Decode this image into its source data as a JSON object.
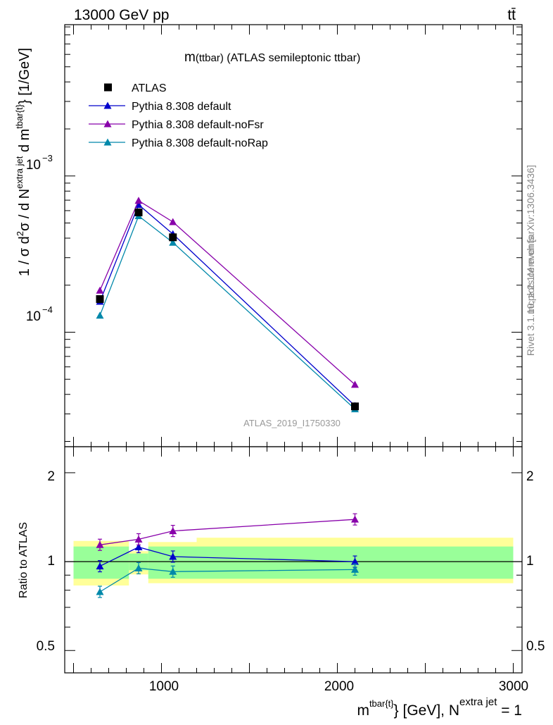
{
  "header": {
    "energy_label": "13000 GeV pp",
    "process_label": "tt̄"
  },
  "side_labels": {
    "rivet": "Rivet 3.1.10, ≥ 2.1M events",
    "mcplots": "mcplots.cern.ch [arXiv:1306.3436]"
  },
  "colors": {
    "atlas": "#000000",
    "default": "#0000cc",
    "noFsr": "#8800aa",
    "noRap": "#0088aa",
    "band_inner": "#99ff99",
    "band_outer": "#ffff99"
  },
  "chart_data": [
    {
      "type": "scatter",
      "title_main": "m",
      "title_sub": "(ttbar)",
      "title_rest": " (ATLAS semileptonic ttbar)",
      "watermark": "ATLAS_2019_I1750330",
      "ylabel": "1 / σ d²σ / d N^{extra jet} d m^{tbar{t}} [1/GeV]",
      "ylabel_parts": {
        "pre1": "1 / σ d",
        "sup1": "2",
        "pre2": "σ / d N",
        "sup2": "extra jet",
        "pre3": " d m",
        "sup3": "tbar{t}",
        "post": "} [1/GeV]"
      },
      "yscale": "log",
      "ylim": [
        1.85e-05,
        0.0093
      ],
      "xlim": [
        450,
        3050
      ],
      "y_ticks": [
        {
          "value": 0.001,
          "base": "10",
          "exp": "−3"
        },
        {
          "value": 0.0001,
          "base": "10",
          "exp": "−4"
        }
      ],
      "legend": {
        "placement": "top-left",
        "entries": [
          {
            "key": "atlas",
            "label": "ATLAS",
            "marker": "square"
          },
          {
            "key": "default",
            "label": "Pythia 8.308 default",
            "marker": "triangle"
          },
          {
            "key": "noFsr",
            "label": "Pythia 8.308 default-noFsr",
            "marker": "triangle"
          },
          {
            "key": "noRap",
            "label": "Pythia 8.308 default-noRap",
            "marker": "triangle"
          }
        ]
      },
      "series": [
        {
          "key": "atlas",
          "name": "ATLAS",
          "x": [
            650,
            870,
            1065,
            2100
          ],
          "y": [
            0.000163,
            0.000585,
            0.000405,
            3.35e-05
          ]
        },
        {
          "key": "default",
          "name": "Pythia 8.308 default",
          "x": [
            650,
            870,
            1065,
            2100
          ],
          "y": [
            0.000157,
            0.000655,
            0.000425,
            3.38e-05
          ]
        },
        {
          "key": "noFsr",
          "name": "Pythia 8.308 default-noFsr",
          "x": [
            650,
            870,
            1065,
            2100
          ],
          "y": [
            0.000185,
            0.000695,
            0.000508,
            4.62e-05
          ]
        },
        {
          "key": "noRap",
          "name": "Pythia 8.308 default-noRap",
          "x": [
            650,
            870,
            1065,
            2100
          ],
          "y": [
            0.000128,
            0.000555,
            0.000375,
            3.22e-05
          ]
        }
      ]
    },
    {
      "type": "scatter",
      "ylabel": "Ratio to ATLAS",
      "xlabel": "m^{tbar{t}} [GeV], N^{extra jet} = 1",
      "xlabel_parts": {
        "pre1": "m",
        "sup1": "tbar{t}",
        "pre2": "} [GeV], N",
        "sup2": "extra jet",
        "post": " = 1"
      },
      "yscale": "log",
      "ylim": [
        0.42,
        2.45
      ],
      "xlim": [
        450,
        3050
      ],
      "x_ticks": [
        1000,
        2000,
        3000
      ],
      "y_ticks": [
        0.5,
        1,
        2
      ],
      "reference_line": 1,
      "bands": [
        {
          "x0": 500,
          "x1": 815,
          "inner": [
            0.875,
            1.125
          ],
          "outer": [
            0.83,
            1.175
          ]
        },
        {
          "x0": 815,
          "x1": 925,
          "inner": [
            0.935,
            1.065
          ],
          "outer": [
            0.905,
            1.085
          ]
        },
        {
          "x0": 925,
          "x1": 1200,
          "inner": [
            0.875,
            1.125
          ],
          "outer": [
            0.845,
            1.165
          ]
        },
        {
          "x0": 1200,
          "x1": 3000,
          "inner": [
            0.875,
            1.125
          ],
          "outer": [
            0.845,
            1.205
          ]
        }
      ],
      "series": [
        {
          "key": "default",
          "name": "Pythia 8.308 default",
          "x": [
            650,
            870,
            1065,
            2100
          ],
          "y": [
            0.965,
            1.12,
            1.04,
            1.0
          ]
        },
        {
          "key": "noFsr",
          "name": "Pythia 8.308 default-noFsr",
          "x": [
            650,
            870,
            1065,
            2100
          ],
          "y": [
            1.14,
            1.19,
            1.27,
            1.39
          ]
        },
        {
          "key": "noRap",
          "name": "Pythia 8.308 default-noRap",
          "x": [
            650,
            870,
            1065,
            2100
          ],
          "y": [
            0.79,
            0.95,
            0.925,
            0.94
          ]
        }
      ]
    }
  ]
}
